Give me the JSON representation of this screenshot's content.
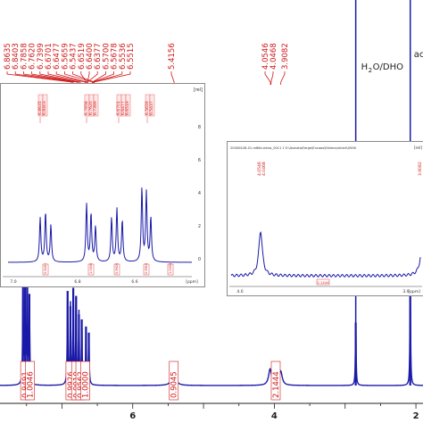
{
  "chart_data": {
    "type": "line",
    "title": "",
    "xlabel": "",
    "ylabel": "",
    "xlim": [
      1.9,
      7.9
    ],
    "x_reversed": true,
    "x_ticks": [
      {
        "value": 6,
        "label": "6"
      },
      {
        "value": 4,
        "label": "4"
      },
      {
        "value": 2,
        "label": "2"
      }
    ],
    "colors": {
      "spectrum": "#1a1aa8",
      "labels": "#d01818",
      "axis": "#222222"
    },
    "top_peak_labels": [
      {
        "ppm": 6.8635,
        "label": "6.8635"
      },
      {
        "ppm": 6.8403,
        "label": "6.8403"
      },
      {
        "ppm": 6.7858,
        "label": "6.7858"
      },
      {
        "ppm": 6.762,
        "label": "6.7620"
      },
      {
        "ppm": 6.7399,
        "label": "6.7399"
      },
      {
        "ppm": 6.6701,
        "label": "6.6701"
      },
      {
        "ppm": 6.6477,
        "label": "6.6477"
      },
      {
        "ppm": 6.5659,
        "label": "6.5659"
      },
      {
        "ppm": 6.5437,
        "label": "6.5437"
      },
      {
        "ppm": 6.6519,
        "label": "6.6519"
      },
      {
        "ppm": 6.64,
        "label": "6.6400"
      },
      {
        "ppm": 6.6377,
        "label": "6.6377"
      },
      {
        "ppm": 6.57,
        "label": "6.5700"
      },
      {
        "ppm": 6.5678,
        "label": "6.5678"
      },
      {
        "ppm": 6.5536,
        "label": "6.5536"
      },
      {
        "ppm": 6.5515,
        "label": "6.5515"
      },
      {
        "ppm": 5.4156,
        "label": "5.4156"
      },
      {
        "ppm": 4.0546,
        "label": "4.0546"
      },
      {
        "ppm": 4.0468,
        "label": "4.0468"
      },
      {
        "ppm": 3.9082,
        "label": "3.9082"
      }
    ],
    "peaks": [
      {
        "ppm": 7.55,
        "height": 0.98
      },
      {
        "ppm": 7.52,
        "height": 0.99
      },
      {
        "ppm": 7.49,
        "height": 0.97
      },
      {
        "ppm": 7.46,
        "height": 0.9
      },
      {
        "ppm": 6.92,
        "height": 0.93
      },
      {
        "ppm": 6.88,
        "height": 0.78
      },
      {
        "ppm": 6.84,
        "height": 0.96
      },
      {
        "ppm": 6.8,
        "height": 0.88
      },
      {
        "ppm": 6.76,
        "height": 0.7
      },
      {
        "ppm": 6.72,
        "height": 0.65
      },
      {
        "ppm": 6.66,
        "height": 0.58
      },
      {
        "ppm": 6.62,
        "height": 0.52
      },
      {
        "ppm": 5.42,
        "height": 0.2
      },
      {
        "ppm": 4.06,
        "height": 0.16
      },
      {
        "ppm": 3.91,
        "height": 0.14
      },
      {
        "ppm": 2.85,
        "height": 0.62
      },
      {
        "ppm": 2.08,
        "height": 0.98
      }
    ],
    "integrals": [
      {
        "ppm": 7.52,
        "label": "0.9491"
      },
      {
        "ppm": 7.45,
        "label": "1.0046"
      },
      {
        "ppm": 6.88,
        "label": "0.9926"
      },
      {
        "ppm": 6.8,
        "label": "0.9910"
      },
      {
        "ppm": 6.74,
        "label": "0.9562"
      },
      {
        "ppm": 6.67,
        "label": "1.0000"
      },
      {
        "ppm": 5.42,
        "label": "0.9045"
      },
      {
        "ppm": 3.98,
        "label": "2.1444"
      }
    ],
    "annotations": [
      {
        "ppm": 2.85,
        "label": "H2O/DHO"
      },
      {
        "ppm": 2.08,
        "label": "ac"
      }
    ]
  },
  "inset_left": {
    "header": "",
    "units_label": "[rel]",
    "x_unit_label": "[ppm]",
    "x_ticks": [
      "7.0",
      "6.8",
      "6.6"
    ],
    "y_ticks": [
      "8",
      "6",
      "4",
      "2",
      "0"
    ],
    "peak_label_groups": [
      [
        "6.8635",
        "6.8403"
      ],
      [
        "6.7858",
        "6.7620",
        "6.7399"
      ],
      [
        "6.6701",
        "6.6477",
        "6.6519"
      ],
      [
        "6.5659",
        "6.5437"
      ]
    ],
    "integrals": [
      "0.9491",
      "1.0046",
      "0.9926",
      "0.9910",
      "1.0000"
    ]
  },
  "inset_right": {
    "header": "20000428-01-m86cunhos_0011 1 E:\\Asinata\\Farge\\Encoas\\Estimo\\nhiart\\0006",
    "units_label": "[rel]",
    "x_unit_label": "[ppm]",
    "x_ticks": [
      "4.0",
      "3.9"
    ],
    "peak_labels_left": [
      "4.0546",
      "4.0468"
    ],
    "peak_labels_right": [
      "3.9082"
    ],
    "integral": "2.1444"
  }
}
